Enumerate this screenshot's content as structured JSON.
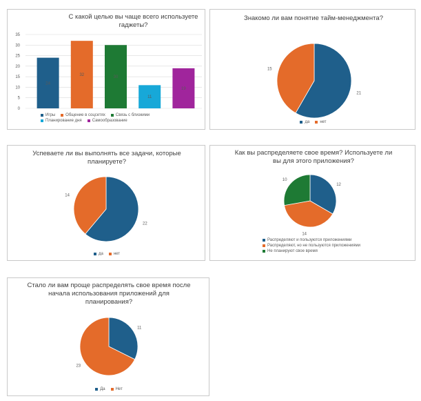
{
  "colors": {
    "blue": "#1f5f8b",
    "orange": "#e46b2a",
    "green": "#1e7a34",
    "cyan": "#17a8d8",
    "purple": "#a0259c"
  },
  "chart_data": [
    {
      "type": "bar",
      "title": "С какой целью вы чаще всего используете гаджеты?",
      "categories": [
        "Игры",
        "Общение в соцсетях",
        "Связь с близкими",
        "Планирование дня",
        "Самообразование"
      ],
      "values": [
        24,
        32,
        30,
        11,
        19
      ],
      "value_labels": [
        "24",
        "32",
        "30",
        "11",
        "19"
      ],
      "yticks": [
        "0",
        "5",
        "10",
        "15",
        "20",
        "25",
        "30",
        "35"
      ],
      "ylim": [
        0,
        35
      ],
      "legend": [
        "Игры",
        "Общение в соцсетях",
        "Связь с близкими",
        "Планирование дня",
        "Самообразование"
      ],
      "colors": [
        "#1f5f8b",
        "#e46b2a",
        "#1e7a34",
        "#17a8d8",
        "#a0259c"
      ],
      "grid": true,
      "legend_position": "bottom"
    },
    {
      "type": "pie",
      "title": "Знакомо ли вам понятие тайм-менеджмента?",
      "labels": [
        "да",
        "нет"
      ],
      "values": [
        21,
        15
      ],
      "value_labels": [
        "21",
        "15"
      ],
      "colors": [
        "#1f5f8b",
        "#e46b2a"
      ],
      "legend_position": "bottom"
    },
    {
      "type": "pie",
      "title": "Успеваете ли вы выполнять все задачи, которые планируете?",
      "labels": [
        "да",
        "нет"
      ],
      "values": [
        22,
        14
      ],
      "value_labels": [
        "22",
        "14"
      ],
      "colors": [
        "#1f5f8b",
        "#e46b2a"
      ],
      "legend_position": "bottom"
    },
    {
      "type": "pie",
      "title": "Как вы распределяете свое время? Используете ли вы для этого приложения?",
      "labels": [
        "Распределяют и пользуются приложениями",
        "Распределяют, но не пользуются приложениями",
        "Не планируют свое время"
      ],
      "values": [
        12,
        14,
        10
      ],
      "value_labels": [
        "12",
        "14",
        "10"
      ],
      "colors": [
        "#1f5f8b",
        "#e46b2a",
        "#1e7a34"
      ],
      "legend_position": "bottom"
    },
    {
      "type": "pie",
      "title": "Стало ли вам проще распределять свое время после начала использования приложений для планирования?",
      "labels": [
        "Да",
        "Нет"
      ],
      "values": [
        11,
        23
      ],
      "value_labels": [
        "11",
        "23"
      ],
      "colors": [
        "#1f5f8b",
        "#e46b2a"
      ],
      "legend_position": "bottom"
    }
  ]
}
